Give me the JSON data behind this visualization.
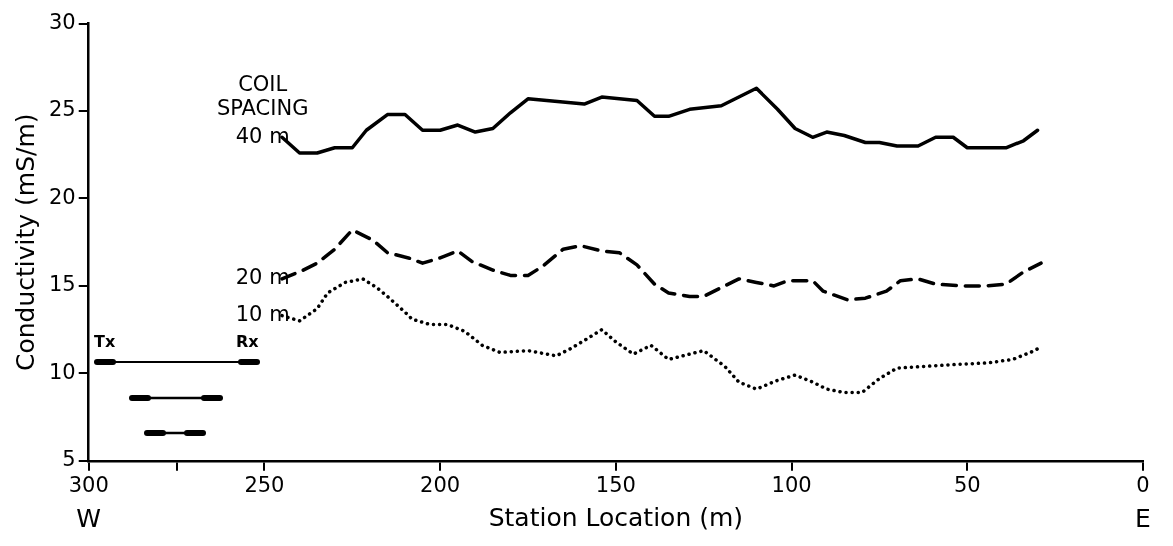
{
  "chart_data": {
    "type": "line",
    "xlabel": "Station Location (m)",
    "ylabel": "Conductivity (mS/m)",
    "legend_title": "COIL SPACING",
    "annotations": [
      "W",
      "E",
      "Tx",
      "Rx"
    ],
    "xlim": [
      300,
      0
    ],
    "xticks": [
      300,
      {
        "value": 275,
        "label": null
      },
      250,
      200,
      150,
      100,
      50,
      0
    ],
    "ylim": [
      5,
      30
    ],
    "yticks": [
      5,
      10,
      15,
      20,
      25,
      30
    ],
    "grid": false,
    "marker": "none",
    "series": [
      {
        "name": "40 m",
        "color": "#000000",
        "line_style": "solid",
        "x": [
          245,
          240,
          235,
          230,
          225,
          221,
          215,
          210,
          205,
          200,
          195,
          190,
          185,
          180,
          175,
          159,
          154,
          144,
          139,
          135,
          129,
          120,
          110,
          104,
          99,
          94,
          90,
          85,
          79,
          75,
          70,
          64,
          59,
          54,
          50,
          39,
          34,
          30
        ],
        "values": [
          23.5,
          22.6,
          22.6,
          22.9,
          22.9,
          23.9,
          24.8,
          24.8,
          23.9,
          23.9,
          24.2,
          23.8,
          24.0,
          24.9,
          25.7,
          25.4,
          25.8,
          25.6,
          24.7,
          24.7,
          25.1,
          25.3,
          26.3,
          25.1,
          24.0,
          23.5,
          23.8,
          23.6,
          23.2,
          23.2,
          23.0,
          23.0,
          23.5,
          23.5,
          22.9,
          22.9,
          23.3,
          23.9
        ]
      },
      {
        "name": "20 m",
        "color": "#000000",
        "line_style": "dashed",
        "x": [
          245,
          239,
          235,
          230,
          225,
          219,
          215,
          209,
          205,
          200,
          195,
          191,
          185,
          180,
          175,
          171,
          165,
          160,
          154,
          149,
          144,
          139,
          135,
          129,
          125,
          120,
          115,
          110,
          105,
          101,
          94,
          91,
          84,
          79,
          73,
          69,
          64,
          59,
          51,
          45,
          39,
          34,
          29
        ],
        "values": [
          15.4,
          15.9,
          16.3,
          17.1,
          18.2,
          17.6,
          16.9,
          16.6,
          16.3,
          16.6,
          17.0,
          16.4,
          15.9,
          15.6,
          15.6,
          16.1,
          17.1,
          17.3,
          17.0,
          16.9,
          16.2,
          15.1,
          14.6,
          14.4,
          14.4,
          14.9,
          15.4,
          15.2,
          15.0,
          15.3,
          15.3,
          14.7,
          14.2,
          14.3,
          14.7,
          15.3,
          15.4,
          15.1,
          15.0,
          15.0,
          15.1,
          15.8,
          16.3
        ]
      },
      {
        "name": "10 m",
        "color": "#000000",
        "line_style": "dotted",
        "x": [
          245,
          240,
          235,
          232,
          227,
          222,
          218,
          215,
          210,
          208,
          203,
          198,
          193,
          188,
          183,
          175,
          167,
          163,
          158,
          154,
          150,
          145,
          140,
          135,
          129,
          125,
          119,
          115,
          110,
          104,
          99,
          94,
          90,
          85,
          80,
          75,
          70,
          62,
          54,
          44,
          37,
          32,
          29
        ],
        "values": [
          13.3,
          13.0,
          13.7,
          14.6,
          15.2,
          15.4,
          14.9,
          14.4,
          13.5,
          13.1,
          12.8,
          12.8,
          12.4,
          11.6,
          11.2,
          11.3,
          11.0,
          11.4,
          12.0,
          12.5,
          11.8,
          11.1,
          11.6,
          10.8,
          11.1,
          11.3,
          10.4,
          9.5,
          9.1,
          9.6,
          9.9,
          9.5,
          9.1,
          8.9,
          8.9,
          9.7,
          10.3,
          10.4,
          10.5,
          10.6,
          10.8,
          11.2,
          11.5
        ]
      }
    ]
  }
}
